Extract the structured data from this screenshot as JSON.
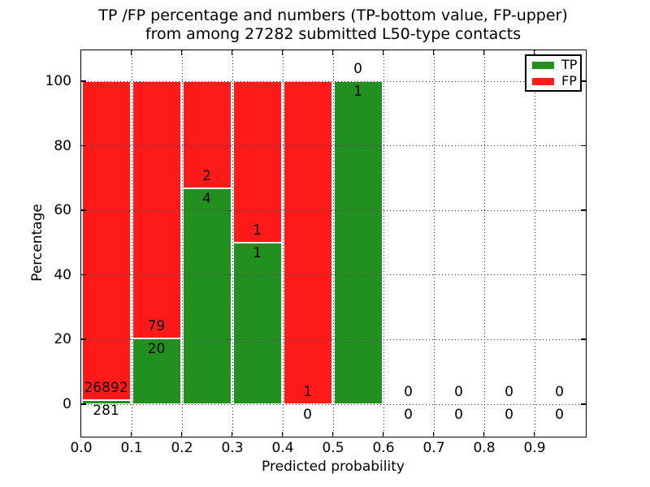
{
  "chart_data": {
    "type": "bar",
    "stacked": true,
    "title_line1": "TP /FP percentage and numbers (TP-bottom value, FP-upper)",
    "title_line2": "from among 27282 submitted L50-type contacts",
    "xlabel": "Predicted probability",
    "ylabel": "Percentage",
    "x_tick_labels": [
      "0.0",
      "0.1",
      "0.2",
      "0.3",
      "0.4",
      "0.5",
      "0.6",
      "0.7",
      "0.8",
      "0.9"
    ],
    "y_tick_values": [
      0,
      20,
      40,
      60,
      80,
      100
    ],
    "x_axis_range": [
      0.0,
      1.0
    ],
    "y_axis_range": [
      0,
      100
    ],
    "bin_width": 0.1,
    "grid": "dotted, both axes, drawn over bars",
    "legend": {
      "position": "upper-right",
      "entries": [
        {
          "label": "TP",
          "color": "#219021"
        },
        {
          "label": "FP",
          "color": "#FF1A1A"
        }
      ]
    },
    "colors": {
      "tp": "#219021",
      "fp": "#FF1A1A"
    },
    "bins": [
      {
        "range": "0.0-0.1",
        "tp": 281,
        "fp": 26892
      },
      {
        "range": "0.1-0.2",
        "tp": 20,
        "fp": 79
      },
      {
        "range": "0.2-0.3",
        "tp": 4,
        "fp": 2
      },
      {
        "range": "0.3-0.4",
        "tp": 1,
        "fp": 1
      },
      {
        "range": "0.4-0.5",
        "tp": 0,
        "fp": 1
      },
      {
        "range": "0.5-0.6",
        "tp": 1,
        "fp": 0
      },
      {
        "range": "0.6-0.7",
        "tp": 0,
        "fp": 0
      },
      {
        "range": "0.7-0.8",
        "tp": 0,
        "fp": 0
      },
      {
        "range": "0.8-0.9",
        "tp": 0,
        "fp": 0
      },
      {
        "range": "0.9-1.0",
        "tp": 0,
        "fp": 0
      }
    ]
  }
}
